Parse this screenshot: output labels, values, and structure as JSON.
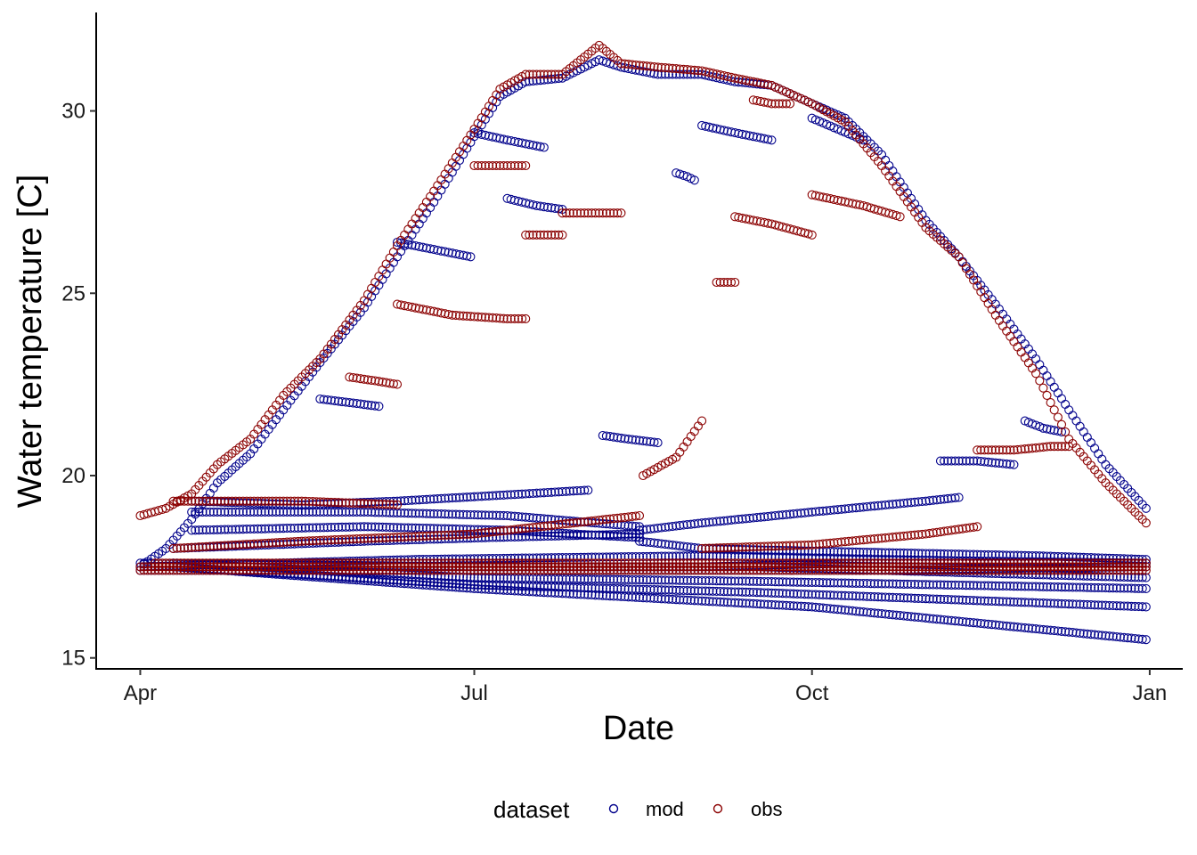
{
  "chart_data": {
    "type": "scatter",
    "title": "",
    "xlabel": "Date",
    "ylabel": "Water temperature [C]",
    "x_ticks": [
      "Apr",
      "Jul",
      "Oct",
      "Jan"
    ],
    "y_ticks": [
      "15",
      "20",
      "25",
      "30"
    ],
    "x_tick_dates": [
      "2009-04-01",
      "2009-07-01",
      "2009-10-01",
      "2010-01-01"
    ],
    "xlim": [
      "2009-03-20",
      "2010-01-10"
    ],
    "ylim": [
      14.7,
      32.7
    ],
    "grid": false,
    "legend": {
      "title": "dataset",
      "position": "bottom"
    },
    "marker": "open-circle",
    "series": [
      {
        "name": "mod",
        "color": "#00008b",
        "tracks": [
          {
            "x": [
              "2009-04-01",
              "2009-04-08",
              "2009-04-15",
              "2009-04-22",
              "2009-05-01",
              "2009-05-10",
              "2009-05-20",
              "2009-06-01",
              "2009-06-10",
              "2009-06-20",
              "2009-07-01",
              "2009-07-08",
              "2009-07-15",
              "2009-07-25",
              "2009-08-04",
              "2009-08-10",
              "2009-08-20",
              "2009-09-01",
              "2009-09-10",
              "2009-09-20",
              "2009-10-01",
              "2009-10-10",
              "2009-10-20",
              "2009-11-01",
              "2009-11-10",
              "2009-11-20",
              "2009-12-01",
              "2009-12-10",
              "2009-12-20",
              "2009-12-31"
            ],
            "y": [
              17.5,
              18.0,
              18.8,
              19.8,
              20.6,
              21.8,
              23.1,
              24.6,
              26.0,
              27.5,
              29.3,
              30.4,
              30.8,
              30.9,
              31.4,
              31.2,
              31.0,
              31.0,
              30.8,
              30.7,
              30.2,
              29.8,
              28.8,
              27.0,
              26.0,
              24.7,
              23.2,
              21.8,
              20.3,
              19.1
            ]
          },
          {
            "x": [
              "2009-04-01",
              "2009-06-15",
              "2009-09-01",
              "2009-10-15",
              "2009-12-31"
            ],
            "y": [
              17.6,
              17.5,
              17.5,
              17.6,
              17.6
            ]
          },
          {
            "x": [
              "2009-04-01",
              "2009-06-15",
              "2009-09-01",
              "2009-10-15",
              "2009-12-31"
            ],
            "y": [
              17.4,
              17.4,
              17.4,
              17.4,
              17.5
            ]
          },
          {
            "x": [
              "2009-04-01",
              "2009-06-15",
              "2009-09-01",
              "2009-10-15",
              "2009-12-31"
            ],
            "y": [
              17.5,
              17.7,
              17.8,
              17.7,
              17.6
            ]
          },
          {
            "x": [
              "2009-04-10",
              "2009-07-01",
              "2009-09-15",
              "2009-12-31"
            ],
            "y": [
              17.6,
              17.5,
              17.5,
              17.2
            ]
          },
          {
            "x": [
              "2009-04-10",
              "2009-07-01",
              "2009-09-15",
              "2009-12-31"
            ],
            "y": [
              17.6,
              17.2,
              17.1,
              16.9
            ]
          },
          {
            "x": [
              "2009-04-10",
              "2009-07-01",
              "2009-09-15",
              "2009-12-31"
            ],
            "y": [
              17.5,
              17.0,
              16.8,
              16.4
            ]
          },
          {
            "x": [
              "2009-04-10",
              "2009-07-01",
              "2009-10-01",
              "2009-12-31"
            ],
            "y": [
              17.5,
              16.9,
              16.4,
              15.5
            ]
          },
          {
            "x": [
              "2009-04-10",
              "2009-06-01",
              "2009-07-05",
              "2009-08-15"
            ],
            "y": [
              18.0,
              18.2,
              18.3,
              18.4
            ]
          },
          {
            "x": [
              "2009-04-15",
              "2009-06-01",
              "2009-07-10",
              "2009-08-15"
            ],
            "y": [
              18.5,
              18.6,
              18.5,
              18.3
            ]
          },
          {
            "x": [
              "2009-04-15",
              "2009-06-01",
              "2009-07-10",
              "2009-08-15"
            ],
            "y": [
              19.0,
              19.0,
              18.9,
              18.6
            ]
          },
          {
            "x": [
              "2009-04-15",
              "2009-05-15",
              "2009-06-10",
              "2009-07-15",
              "2009-08-01"
            ],
            "y": [
              19.3,
              19.2,
              19.3,
              19.5,
              19.6
            ]
          },
          {
            "x": [
              "2009-08-15",
              "2009-09-01",
              "2009-10-01",
              "2009-11-01",
              "2009-11-10"
            ],
            "y": [
              18.5,
              18.7,
              19.0,
              19.3,
              19.4
            ]
          },
          {
            "x": [
              "2009-08-15",
              "2009-09-01",
              "2009-10-15",
              "2009-12-01",
              "2009-12-31"
            ],
            "y": [
              18.2,
              18.0,
              17.9,
              17.8,
              17.7
            ]
          },
          {
            "x": [
              "2009-07-01",
              "2009-07-10",
              "2009-07-20"
            ],
            "y": [
              29.4,
              29.2,
              29.0
            ]
          },
          {
            "x": [
              "2009-06-10",
              "2009-06-20",
              "2009-06-30"
            ],
            "y": [
              26.4,
              26.2,
              26.0
            ]
          },
          {
            "x": [
              "2009-05-20",
              "2009-05-28",
              "2009-06-05"
            ],
            "y": [
              22.1,
              22.0,
              21.9
            ]
          },
          {
            "x": [
              "2009-07-10",
              "2009-07-18",
              "2009-07-25"
            ],
            "y": [
              27.6,
              27.4,
              27.3
            ]
          },
          {
            "x": [
              "2009-08-05",
              "2009-08-12",
              "2009-08-20"
            ],
            "y": [
              21.1,
              21.0,
              20.9
            ]
          },
          {
            "x": [
              "2009-09-01",
              "2009-09-10",
              "2009-09-20"
            ],
            "y": [
              29.6,
              29.4,
              29.2
            ]
          },
          {
            "x": [
              "2009-11-05",
              "2009-11-15",
              "2009-11-25"
            ],
            "y": [
              20.4,
              20.4,
              20.3
            ]
          },
          {
            "x": [
              "2009-11-28",
              "2009-12-03",
              "2009-12-08"
            ],
            "y": [
              21.5,
              21.3,
              21.2
            ]
          },
          {
            "x": [
              "2009-08-25",
              "2009-08-28",
              "2009-08-30"
            ],
            "y": [
              28.3,
              28.2,
              28.1
            ]
          },
          {
            "x": [
              "2009-10-01",
              "2009-10-08",
              "2009-10-15"
            ],
            "y": [
              29.8,
              29.5,
              29.2
            ]
          }
        ]
      },
      {
        "name": "obs",
        "color": "#8b0000",
        "tracks": [
          {
            "x": [
              "2009-04-01",
              "2009-04-08",
              "2009-04-15",
              "2009-04-22",
              "2009-05-01",
              "2009-05-10",
              "2009-05-20",
              "2009-06-01",
              "2009-06-10",
              "2009-06-20",
              "2009-07-01",
              "2009-07-08",
              "2009-07-15",
              "2009-07-25",
              "2009-08-04",
              "2009-08-10",
              "2009-08-20",
              "2009-09-01",
              "2009-09-10",
              "2009-09-20",
              "2009-10-01",
              "2009-10-10",
              "2009-10-20",
              "2009-11-01",
              "2009-11-10",
              "2009-11-20",
              "2009-12-01",
              "2009-12-10",
              "2009-12-20",
              "2009-12-31"
            ],
            "y": [
              18.9,
              19.1,
              19.5,
              20.3,
              21.0,
              22.2,
              23.2,
              24.8,
              26.3,
              27.8,
              29.5,
              30.6,
              31.0,
              31.0,
              31.8,
              31.3,
              31.2,
              31.1,
              30.9,
              30.7,
              30.2,
              29.7,
              28.5,
              26.8,
              26.0,
              24.4,
              22.8,
              21.0,
              19.8,
              18.7
            ]
          },
          {
            "x": [
              "2009-04-01",
              "2009-06-15",
              "2009-09-01",
              "2009-10-15",
              "2009-12-31"
            ],
            "y": [
              17.4,
              17.4,
              17.4,
              17.4,
              17.4
            ]
          },
          {
            "x": [
              "2009-04-01",
              "2009-06-15",
              "2009-09-01",
              "2009-10-15",
              "2009-12-31"
            ],
            "y": [
              17.5,
              17.5,
              17.5,
              17.5,
              17.5
            ]
          },
          {
            "x": [
              "2009-04-05",
              "2009-06-15",
              "2009-09-01",
              "2009-10-15",
              "2009-12-31"
            ],
            "y": [
              17.6,
              17.6,
              17.6,
              17.6,
              17.6
            ]
          },
          {
            "x": [
              "2009-04-10",
              "2009-05-15",
              "2009-07-01",
              "2009-08-15"
            ],
            "y": [
              18.0,
              18.2,
              18.4,
              18.9
            ]
          },
          {
            "x": [
              "2009-04-10",
              "2009-05-15",
              "2009-06-10"
            ],
            "y": [
              19.3,
              19.3,
              19.2
            ]
          },
          {
            "x": [
              "2009-09-01",
              "2009-10-01",
              "2009-11-01",
              "2009-11-15"
            ],
            "y": [
              18.0,
              18.1,
              18.4,
              18.6
            ]
          },
          {
            "x": [
              "2009-06-10",
              "2009-06-25",
              "2009-07-10",
              "2009-07-15"
            ],
            "y": [
              24.7,
              24.4,
              24.3,
              24.3
            ]
          },
          {
            "x": [
              "2009-05-28",
              "2009-06-04",
              "2009-06-10"
            ],
            "y": [
              22.7,
              22.6,
              22.5
            ]
          },
          {
            "x": [
              "2009-07-01",
              "2009-07-10",
              "2009-07-15"
            ],
            "y": [
              28.5,
              28.5,
              28.5
            ]
          },
          {
            "x": [
              "2009-07-25",
              "2009-08-05",
              "2009-08-10"
            ],
            "y": [
              27.2,
              27.2,
              27.2
            ]
          },
          {
            "x": [
              "2009-08-16",
              "2009-08-25",
              "2009-09-01"
            ],
            "y": [
              20.0,
              20.5,
              21.5
            ]
          },
          {
            "x": [
              "2009-09-05",
              "2009-09-10"
            ],
            "y": [
              25.3,
              25.3
            ]
          },
          {
            "x": [
              "2009-09-10",
              "2009-09-20",
              "2009-10-01"
            ],
            "y": [
              27.1,
              26.9,
              26.6
            ]
          },
          {
            "x": [
              "2009-10-01",
              "2009-10-15",
              "2009-10-25"
            ],
            "y": [
              27.7,
              27.4,
              27.1
            ]
          },
          {
            "x": [
              "2009-11-15",
              "2009-11-25",
              "2009-12-05",
              "2009-12-10"
            ],
            "y": [
              20.7,
              20.7,
              20.8,
              20.8
            ]
          },
          {
            "x": [
              "2009-07-15",
              "2009-07-20",
              "2009-07-25"
            ],
            "y": [
              26.6,
              26.6,
              26.6
            ]
          },
          {
            "x": [
              "2009-09-15",
              "2009-09-20",
              "2009-09-25"
            ],
            "y": [
              30.3,
              30.2,
              30.2
            ]
          }
        ]
      }
    ]
  }
}
